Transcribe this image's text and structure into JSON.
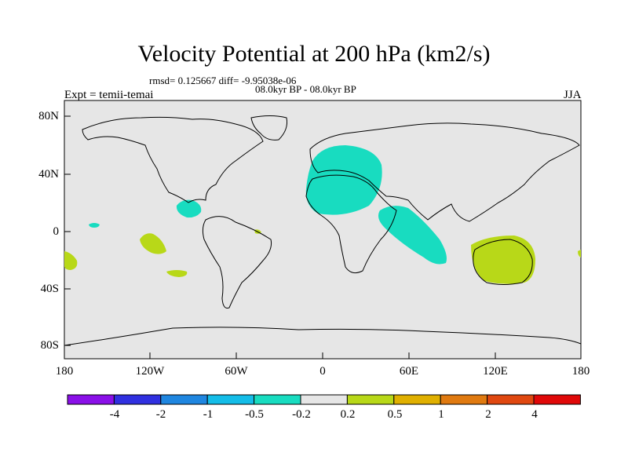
{
  "title": "Velocity Potential at 200 hPa (km2/s)",
  "stats": "rmsd= 0.125667  diff= -9.95038e-06",
  "period": "08.0kyr BP - 08.0kyr BP",
  "experiment": "Expt = temii-temai",
  "season": "JJA",
  "y_axis_labels": [
    "80N",
    "40N",
    "0",
    "40S",
    "80S"
  ],
  "x_axis_labels": [
    "180",
    "120W",
    "60W",
    "0",
    "60E",
    "120E",
    "180"
  ],
  "colorbar": {
    "labels": [
      "-4",
      "-2",
      "-1",
      "-0.5",
      "-0.2",
      "0.2",
      "0.5",
      "1",
      "2",
      "4"
    ],
    "colors": [
      "#8a10e8",
      "#3030e0",
      "#1f86e0",
      "#14bde8",
      "#18dcc0",
      "#e6e6e6",
      "#b8d818",
      "#e0b000",
      "#e07a10",
      "#e04810",
      "#e00808"
    ]
  },
  "colors": {
    "ocean": "#e6e6e6",
    "negative_anomaly": "#18dcc0",
    "positive_anomaly": "#b8d818"
  }
}
